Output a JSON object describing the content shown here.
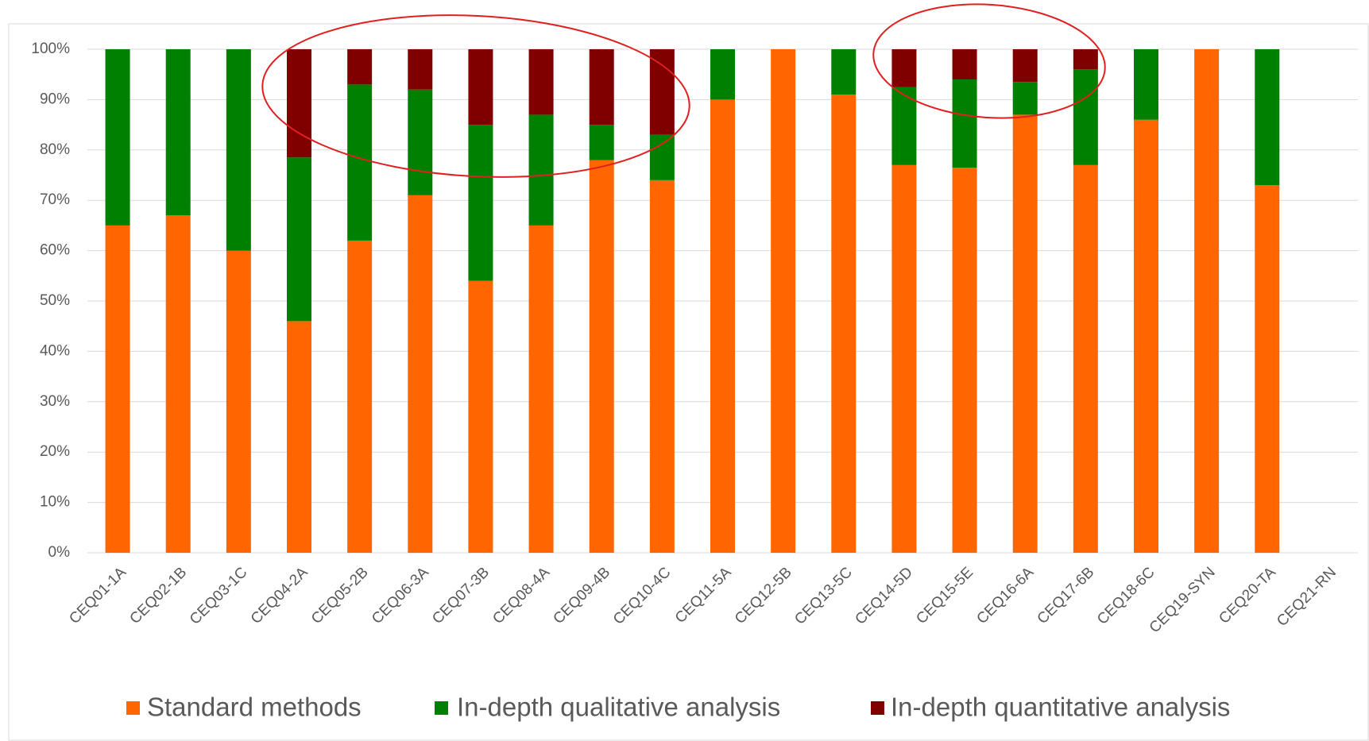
{
  "chart_data": {
    "type": "stacked_bar",
    "categories": [
      "CEQ01-1A",
      "CEQ02-1B",
      "CEQ03-1C",
      "CEQ04-2A",
      "CEQ05-2B",
      "CEQ06-3A",
      "CEQ07-3B",
      "CEQ08-4A",
      "CEQ09-4B",
      "CEQ10-4C",
      "CEQ11-5A",
      "CEQ12-5B",
      "CEQ13-5C",
      "CEQ14-5D",
      "CEQ15-5E",
      "CEQ16-6A",
      "CEQ17-6B",
      "CEQ18-6C",
      "CEQ19-SYN",
      "CEQ20-TA",
      "CEQ21-RN"
    ],
    "series": [
      {
        "name": "Standard methods",
        "color": "#ff6600",
        "values": [
          65,
          67,
          60,
          46,
          62,
          71,
          54,
          65,
          78,
          74,
          90,
          100,
          91,
          77,
          76.5,
          87,
          77,
          86,
          100,
          73,
          0
        ]
      },
      {
        "name": "In-depth qualitative analysis",
        "color": "#008000",
        "values": [
          35,
          33,
          40,
          32.5,
          31,
          21,
          31,
          22,
          7,
          9,
          10,
          0,
          9,
          15.5,
          17.5,
          6.5,
          19,
          14,
          0,
          27,
          0
        ]
      },
      {
        "name": "In-depth quantitative analysis",
        "color": "#800000",
        "values": [
          0,
          0,
          0,
          21.5,
          7,
          8,
          15,
          13,
          15,
          17,
          0,
          0,
          0,
          7.5,
          6,
          6.5,
          4,
          0,
          0,
          0,
          0
        ]
      }
    ],
    "ylim": [
      0,
      100
    ],
    "yticks": [
      {
        "value": 0,
        "label": "0%"
      },
      {
        "value": 10,
        "label": "10%"
      },
      {
        "value": 20,
        "label": "20%"
      },
      {
        "value": 30,
        "label": "30%"
      },
      {
        "value": 40,
        "label": "40%"
      },
      {
        "value": 50,
        "label": "50%"
      },
      {
        "value": 60,
        "label": "60%"
      },
      {
        "value": 70,
        "label": "70%"
      },
      {
        "value": 80,
        "label": "80%"
      },
      {
        "value": 90,
        "label": "90%"
      },
      {
        "value": 100,
        "label": "100%"
      }
    ],
    "grid": true,
    "legend": "bottom"
  }
}
